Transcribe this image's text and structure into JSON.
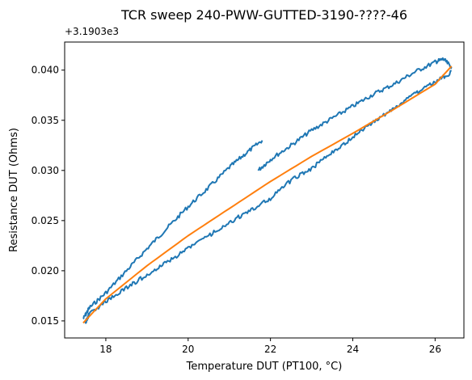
{
  "chart_data": {
    "type": "line",
    "title": "TCR sweep 240-PWW-GUTTED-3190-????-46",
    "xlabel": "Temperature DUT (PT100, °C)",
    "ylabel": "Resistance DUT (Ohms)",
    "offset_label": "+3.1903e3",
    "xlim": [
      17.0,
      26.7
    ],
    "ylim": [
      0.0133,
      0.0428
    ],
    "x_ticks": [
      18,
      20,
      22,
      24,
      26
    ],
    "x_tick_labels": [
      "18",
      "20",
      "22",
      "24",
      "26"
    ],
    "y_ticks": [
      0.015,
      0.02,
      0.025,
      0.03,
      0.035,
      0.04
    ],
    "y_tick_labels": [
      "0.015",
      "0.020",
      "0.025",
      "0.030",
      "0.035",
      "0.040"
    ],
    "grid": false,
    "series": [
      {
        "role": "measured-upper-branch",
        "color": "#1f77b4",
        "x": [
          17.45,
          17.6,
          18.0,
          18.5,
          19.0,
          19.5,
          20.0,
          20.5,
          21.0,
          21.4,
          21.8
        ],
        "y": [
          0.0152,
          0.0163,
          0.0178,
          0.02,
          0.0222,
          0.0243,
          0.0264,
          0.0283,
          0.0303,
          0.0317,
          0.033
        ]
      },
      {
        "role": "measured-middle-branch",
        "color": "#1f77b4",
        "x": [
          21.7,
          22.0,
          22.5,
          23.0,
          23.5,
          24.0,
          24.5,
          25.0,
          25.5,
          26.0,
          26.2,
          26.4
        ],
        "y": [
          0.03,
          0.0311,
          0.0325,
          0.034,
          0.0352,
          0.0364,
          0.0376,
          0.0386,
          0.0398,
          0.0408,
          0.0411,
          0.0403
        ]
      },
      {
        "role": "measured-lower-branch",
        "color": "#1f77b4",
        "x": [
          26.4,
          26.0,
          25.5,
          25.0,
          24.5,
          24.0,
          23.5,
          23.0,
          22.5,
          22.0,
          21.5,
          21.0,
          20.5,
          20.0,
          19.5,
          19.0,
          18.5,
          18.0,
          17.6,
          17.5
        ],
        "y": [
          0.0398,
          0.0388,
          0.0376,
          0.0362,
          0.0348,
          0.0333,
          0.0318,
          0.0302,
          0.029,
          0.0272,
          0.026,
          0.0248,
          0.0235,
          0.0222,
          0.0209,
          0.0196,
          0.0183,
          0.0169,
          0.0157,
          0.0148
        ]
      },
      {
        "role": "fit",
        "color": "#ff7f0e",
        "x": [
          17.45,
          18.0,
          19.0,
          20.0,
          21.0,
          22.0,
          23.0,
          24.0,
          25.0,
          26.0,
          26.4
        ],
        "y": [
          0.0148,
          0.0172,
          0.0205,
          0.0235,
          0.0262,
          0.0289,
          0.0314,
          0.0337,
          0.0361,
          0.0386,
          0.0404
        ]
      }
    ]
  }
}
